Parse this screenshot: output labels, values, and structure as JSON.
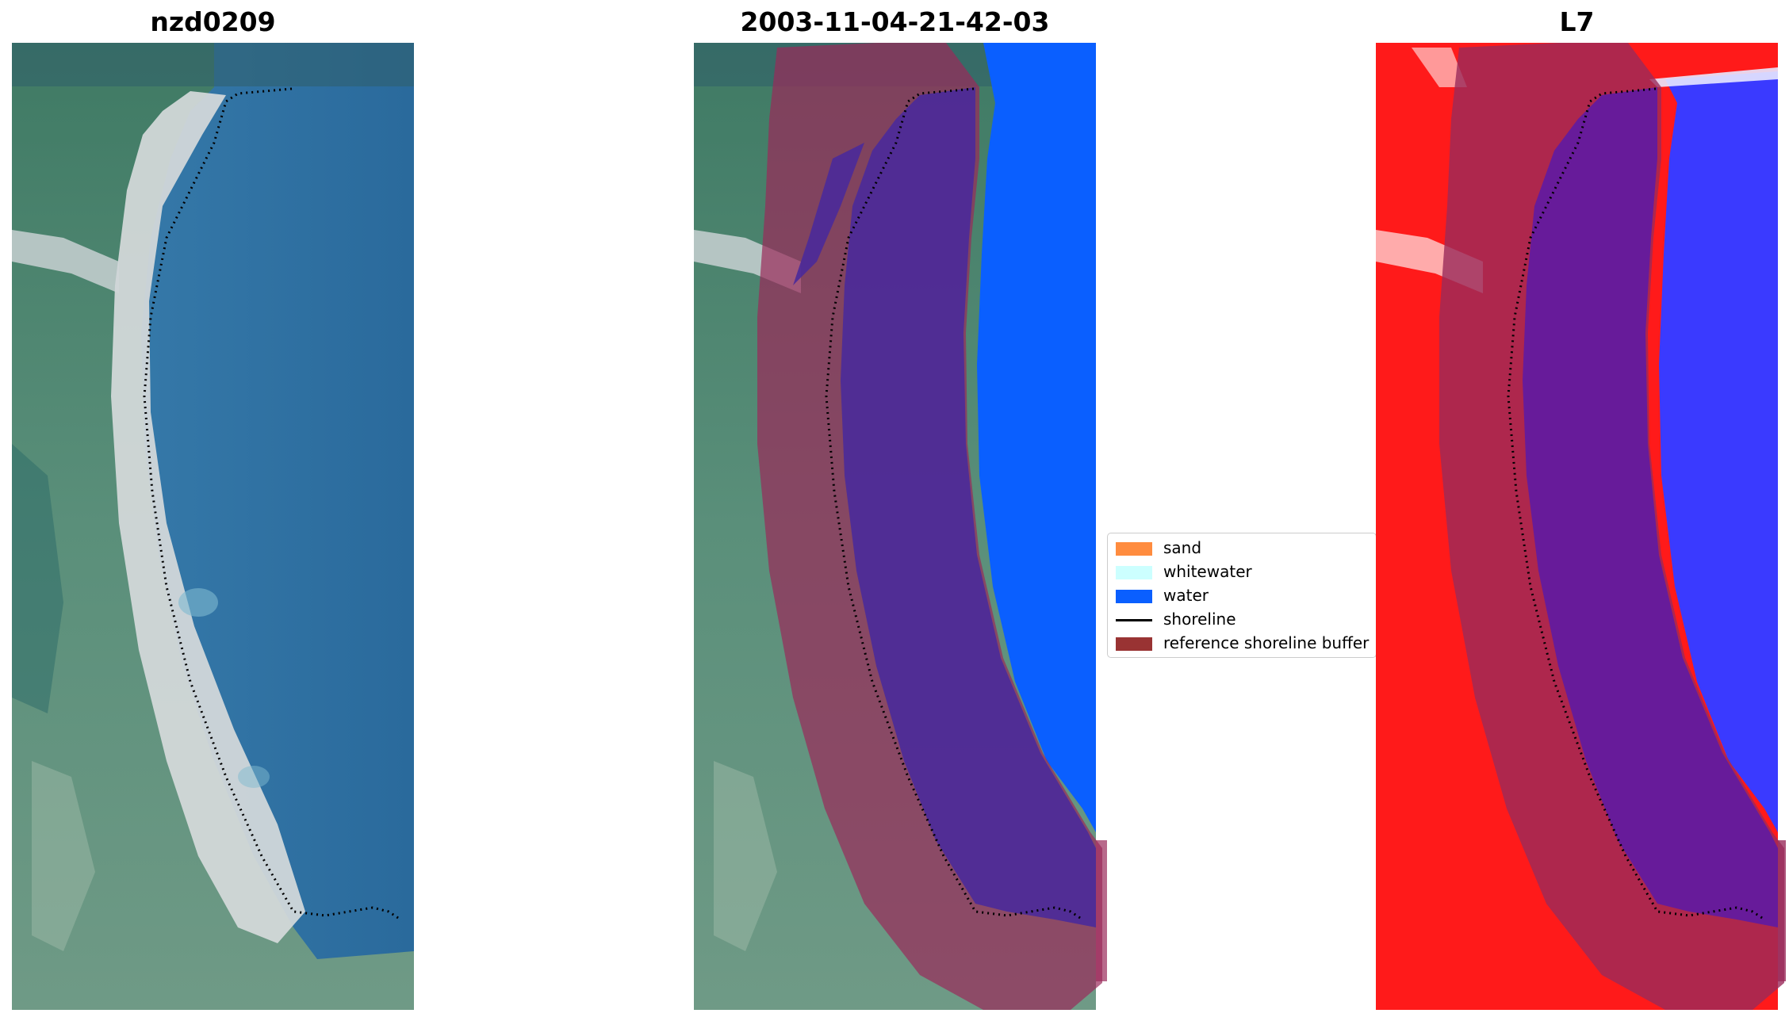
{
  "panels": [
    {
      "id": "rgb",
      "title": "nzd0209"
    },
    {
      "id": "classified",
      "title": "2003-11-04-21-42-03"
    },
    {
      "id": "index",
      "title": "L7"
    }
  ],
  "legend": {
    "items": [
      {
        "label": "sand",
        "color": "#ff8c3f",
        "kind": "patch"
      },
      {
        "label": "whitewater",
        "color": "#ccffff",
        "kind": "patch"
      },
      {
        "label": "water",
        "color": "#0a5fff",
        "kind": "patch"
      },
      {
        "label": "shoreline",
        "color": "#000000",
        "kind": "line"
      },
      {
        "label": "reference shoreline buffer",
        "color": "#993333",
        "kind": "patch"
      }
    ]
  },
  "colors": {
    "water_rgb": "#2a6a9c",
    "vegetation": "#4c8a6e",
    "sand_beach": "#d8dde0",
    "class_water": "#0a5fff",
    "buffer_overlay": "#9a2a5a",
    "index_red": "#ff1a1a",
    "index_blue": "#3a3aff",
    "shoreline": "#000000"
  }
}
